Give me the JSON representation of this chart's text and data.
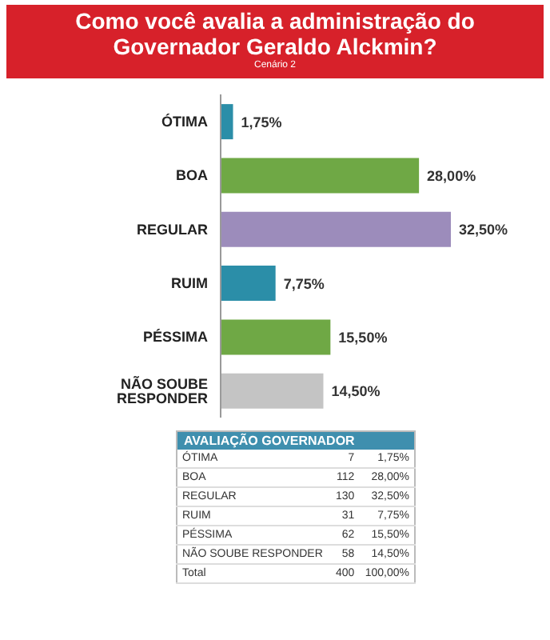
{
  "chart_data": {
    "type": "bar",
    "orientation": "horizontal",
    "title": "Como você avalia a administração do Governador Geraldo Alckmin?",
    "subtitle": "Cenário 2",
    "categories": [
      "ÓTIMA",
      "BOA",
      "REGULAR",
      "RUIM",
      "PÉSSIMA",
      "NÃO SOUBE RESPONDER"
    ],
    "values": [
      1.75,
      28.0,
      32.5,
      7.75,
      15.5,
      14.5
    ],
    "value_labels": [
      "1,75%",
      "28,00%",
      "32,50%",
      "7,75%",
      "15,50%",
      "14,50%"
    ],
    "colors": [
      "#2b8ea8",
      "#6fa845",
      "#9c8cbb",
      "#2b8ea8",
      "#6fa845",
      "#c4c4c4"
    ],
    "annotations": [
      "AVALIAÇÃO GOVERNADOR",
      "7",
      "112",
      "130",
      "31",
      "62",
      "58",
      "Total",
      "400",
      "100,00%"
    ]
  }
}
